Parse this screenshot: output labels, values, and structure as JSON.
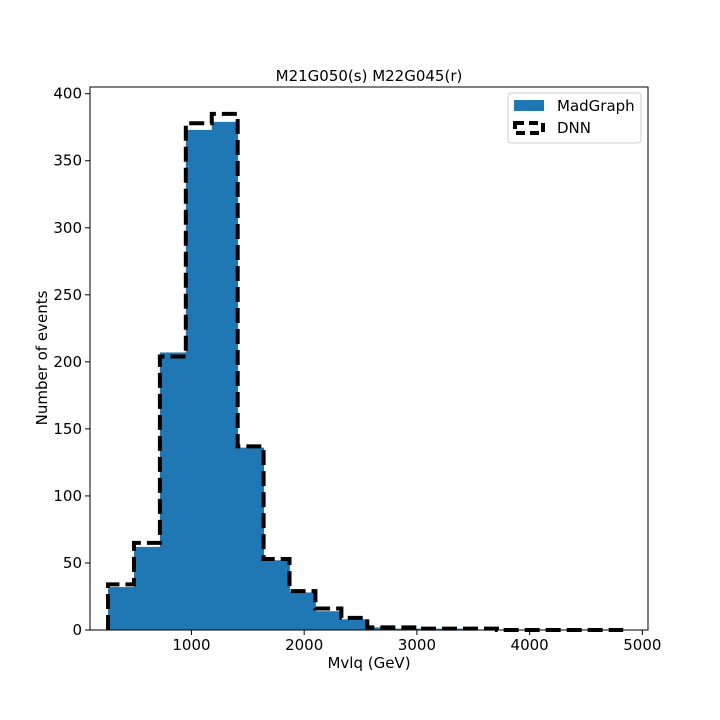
{
  "chart_data": {
    "type": "histogram",
    "title": "M21G050(s) M22G045(r)",
    "xlabel": "Mvlq (GeV)",
    "ylabel": "Number of events",
    "xlim": [
      100,
      5050
    ],
    "ylim": [
      0,
      405
    ],
    "xticks": [
      1000,
      2000,
      3000,
      4000,
      5000
    ],
    "yticks": [
      0,
      50,
      100,
      150,
      200,
      250,
      300,
      350,
      400
    ],
    "xtick_labels": [
      "1000",
      "2000",
      "3000",
      "4000",
      "5000"
    ],
    "ytick_labels": [
      "0",
      "50",
      "100",
      "150",
      "200",
      "250",
      "300",
      "350",
      "400"
    ],
    "bin_edges": [
      260,
      490,
      720,
      950,
      1180,
      1410,
      1640,
      1870,
      2100,
      2330,
      2560,
      2790,
      3020,
      3250,
      3480,
      3710,
      3940,
      4170,
      4400,
      4630,
      4830
    ],
    "series": [
      {
        "name": "MadGraph",
        "style": "filled",
        "color": "#1f77b4",
        "values": [
          32,
          62,
          207,
          373,
          379,
          136,
          52,
          28,
          14,
          8,
          2,
          1,
          1,
          1,
          0,
          0,
          0,
          0,
          0,
          0
        ]
      },
      {
        "name": "DNN",
        "style": "dashed-step",
        "color": "#000000",
        "values": [
          34,
          65,
          204,
          378,
          385,
          137,
          53,
          29,
          16,
          9,
          2,
          2,
          1,
          1,
          1,
          0,
          0,
          0,
          0,
          0
        ]
      }
    ],
    "legend_position": "top-right",
    "grid": false
  }
}
